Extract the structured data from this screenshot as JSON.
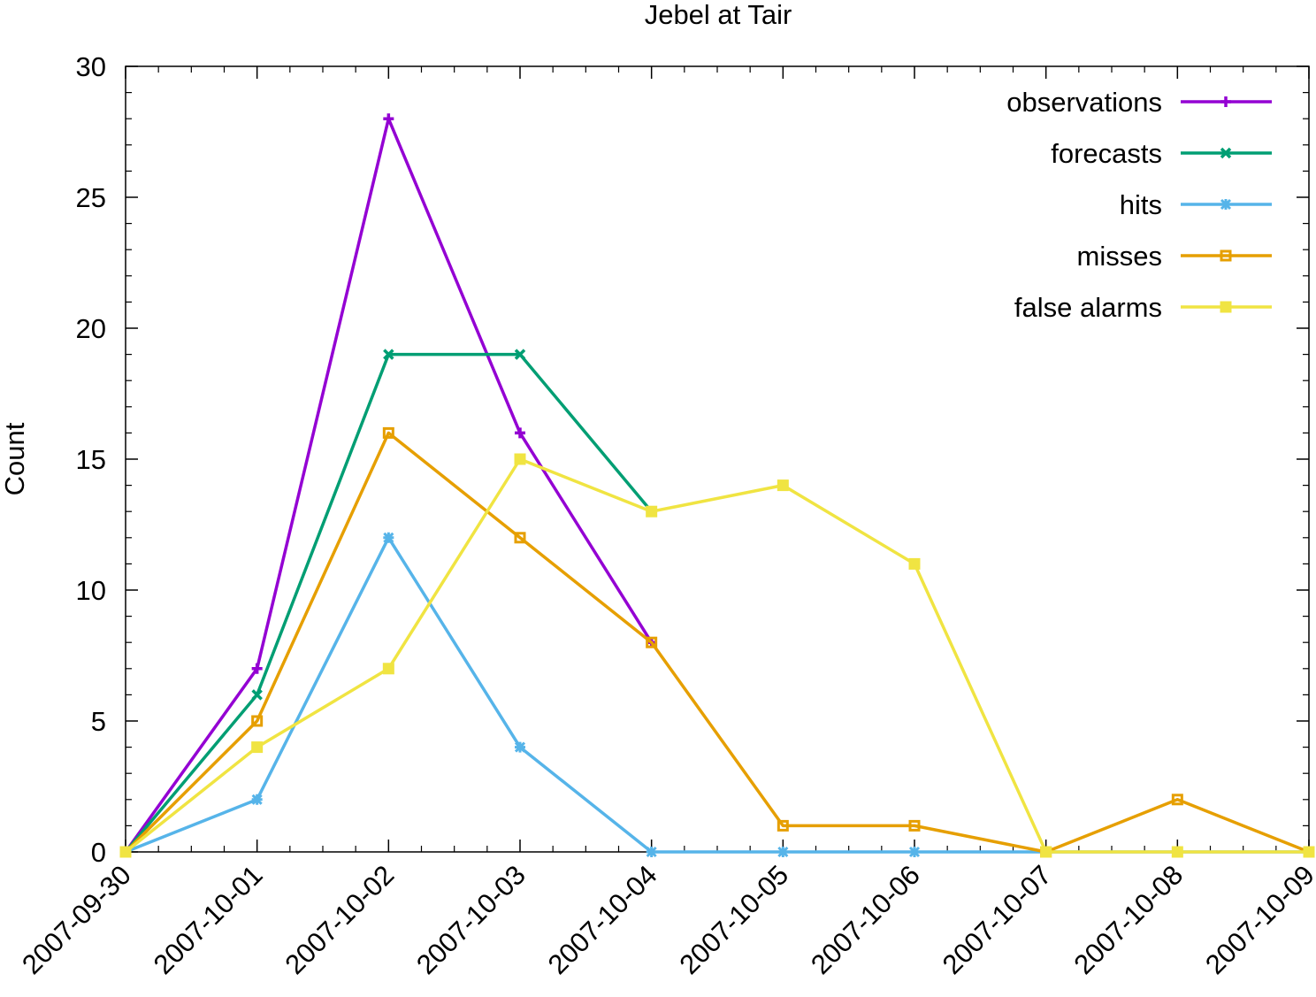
{
  "chart_data": {
    "type": "line",
    "title": "Jebel at Tair",
    "xlabel": "",
    "ylabel": "Count",
    "x": [
      "2007-09-30",
      "2007-10-01",
      "2007-10-02",
      "2007-10-03",
      "2007-10-04",
      "2007-10-05",
      "2007-10-06",
      "2007-10-07",
      "2007-10-08",
      "2007-10-09"
    ],
    "ylim": [
      0,
      30
    ],
    "yticks": [
      "0",
      "5",
      "10",
      "15",
      "20",
      "25",
      "30"
    ],
    "grid": false,
    "legend_position": "top-right",
    "series": [
      {
        "name": "observations",
        "color": "#9400d3",
        "marker": "plus",
        "x": [
          "2007-09-30",
          "2007-10-01",
          "2007-10-02",
          "2007-10-03",
          "2007-10-04"
        ],
        "values": [
          0,
          7,
          28,
          16,
          8
        ]
      },
      {
        "name": "forecasts",
        "color": "#009e73",
        "marker": "cross",
        "x": [
          "2007-09-30",
          "2007-10-01",
          "2007-10-02",
          "2007-10-03",
          "2007-10-04"
        ],
        "values": [
          0,
          6,
          19,
          19,
          13
        ]
      },
      {
        "name": "hits",
        "color": "#56b4e9",
        "marker": "star",
        "x": [
          "2007-09-30",
          "2007-10-01",
          "2007-10-02",
          "2007-10-03",
          "2007-10-04",
          "2007-10-05",
          "2007-10-06",
          "2007-10-07",
          "2007-10-08",
          "2007-10-09"
        ],
        "values": [
          0,
          2,
          12,
          4,
          0,
          0,
          0,
          0,
          0,
          0
        ]
      },
      {
        "name": "misses",
        "color": "#e69f00",
        "marker": "open-square",
        "x": [
          "2007-09-30",
          "2007-10-01",
          "2007-10-02",
          "2007-10-03",
          "2007-10-04",
          "2007-10-05",
          "2007-10-06",
          "2007-10-07",
          "2007-10-08",
          "2007-10-09"
        ],
        "values": [
          0,
          5,
          16,
          12,
          8,
          1,
          1,
          0,
          2,
          0
        ]
      },
      {
        "name": "false alarms",
        "color": "#f0e442",
        "marker": "filled-square",
        "x": [
          "2007-09-30",
          "2007-10-01",
          "2007-10-02",
          "2007-10-03",
          "2007-10-04",
          "2007-10-05",
          "2007-10-06",
          "2007-10-07",
          "2007-10-08",
          "2007-10-09"
        ],
        "values": [
          0,
          4,
          7,
          15,
          13,
          14,
          11,
          0,
          0,
          0
        ]
      }
    ]
  }
}
